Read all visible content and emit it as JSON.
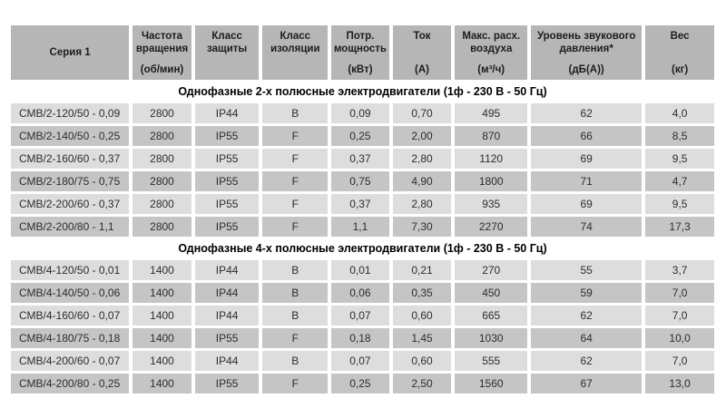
{
  "colors": {
    "header_bg": "#b6b6b6",
    "row_light": "#dddddd",
    "row_dark": "#c5c5c5"
  },
  "table": {
    "columns": [
      {
        "label": "Серия 1",
        "unit": ""
      },
      {
        "label": "Частота вращения",
        "unit": "(об/мин)"
      },
      {
        "label": "Класс защиты",
        "unit": ""
      },
      {
        "label": "Класс изоляции",
        "unit": ""
      },
      {
        "label": "Потр. мощность",
        "unit": "(кВт)"
      },
      {
        "label": "Ток",
        "unit": "(А)"
      },
      {
        "label": "Макс. расх. воздуха",
        "unit": "(м³/ч)"
      },
      {
        "label": "Уровень звукового давления*",
        "unit": "(дБ(А))"
      },
      {
        "label": "Вес",
        "unit": "(кг)"
      }
    ],
    "sections": [
      {
        "title": "Однофазные 2-х полюсные электродвигатели (1ф - 230 В - 50 Гц)",
        "rows": [
          [
            "СМВ/2-120/50 - 0,09",
            "2800",
            "IP44",
            "B",
            "0,09",
            "0,70",
            "495",
            "62",
            "4,0"
          ],
          [
            "СМВ/2-140/50 - 0,25",
            "2800",
            "IP55",
            "F",
            "0,25",
            "2,00",
            "870",
            "66",
            "8,5"
          ],
          [
            "СМВ/2-160/60 - 0,37",
            "2800",
            "IP55",
            "F",
            "0,37",
            "2,80",
            "1120",
            "69",
            "9,5"
          ],
          [
            "СМВ/2-180/75 - 0,75",
            "2800",
            "IP55",
            "F",
            "0,75",
            "4,90",
            "1800",
            "71",
            "4,7"
          ],
          [
            "СМВ/2-200/60 - 0,37",
            "2800",
            "IP55",
            "F",
            "0,37",
            "2,80",
            "935",
            "69",
            "9,5"
          ],
          [
            "СМВ/2-200/80 - 1,1",
            "2800",
            "IP55",
            "F",
            "1,1",
            "7,30",
            "2270",
            "74",
            "17,3"
          ]
        ]
      },
      {
        "title": "Однофазные 4-х полюсные электродвигатели (1ф - 230 В - 50 Гц)",
        "rows": [
          [
            "СМВ/4-120/50 - 0,01",
            "1400",
            "IP44",
            "B",
            "0,01",
            "0,21",
            "270",
            "55",
            "3,7"
          ],
          [
            "СМВ/4-140/50 - 0,06",
            "1400",
            "IP44",
            "B",
            "0,06",
            "0,35",
            "450",
            "59",
            "7,0"
          ],
          [
            "СМВ/4-160/60 - 0,07",
            "1400",
            "IP44",
            "B",
            "0,07",
            "0,60",
            "665",
            "62",
            "7,0"
          ],
          [
            "СМВ/4-180/75 - 0,18",
            "1400",
            "IP55",
            "F",
            "0,18",
            "1,45",
            "1030",
            "64",
            "10,0"
          ],
          [
            "СМВ/4-200/60 - 0,07",
            "1400",
            "IP44",
            "B",
            "0,07",
            "0,60",
            "555",
            "62",
            "7,0"
          ],
          [
            "СМВ/4-200/80 - 0,25",
            "1400",
            "IP55",
            "F",
            "0,25",
            "2,50",
            "1560",
            "67",
            "13,0"
          ]
        ]
      }
    ]
  }
}
